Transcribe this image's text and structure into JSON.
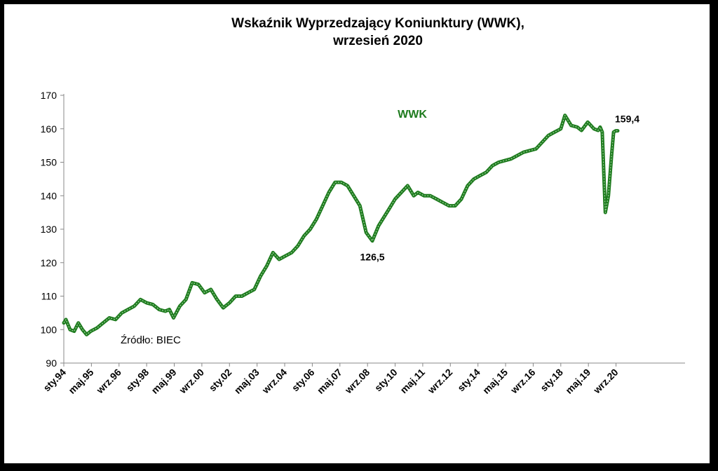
{
  "chart_data": {
    "type": "line",
    "title_lines": [
      "Wskaźnik Wyprzedzający Koniunktury (WWK),",
      "wrzesień 2020"
    ],
    "ylim": [
      90,
      170
    ],
    "yticks": [
      "90",
      "100",
      "110",
      "120",
      "130",
      "140",
      "150",
      "160",
      "170"
    ],
    "x_tick_labels": [
      "sty.94",
      "maj.95",
      "wrz.96",
      "sty.98",
      "maj.99",
      "wrz.00",
      "sty.02",
      "maj.03",
      "wrz.04",
      "sty.06",
      "maj.07",
      "wrz.08",
      "sty.10",
      "maj.11",
      "wrz.12",
      "sty.14",
      "maj.15",
      "wrz.16",
      "sty.18",
      "maj.19",
      "wrz.20"
    ],
    "x_start_label": "sty.94",
    "series": [
      {
        "name": "WWK",
        "color": "#1e7b1e",
        "x": [
          1994.0,
          1994.1,
          1994.3,
          1994.5,
          1994.7,
          1994.9,
          1995.1,
          1995.3,
          1995.6,
          1995.9,
          1996.2,
          1996.5,
          1996.8,
          1997.1,
          1997.4,
          1997.7,
          1998.0,
          1998.3,
          1998.6,
          1998.9,
          1999.1,
          1999.3,
          1999.6,
          1999.9,
          2000.2,
          2000.5,
          2000.8,
          2001.1,
          2001.4,
          2001.7,
          2002.0,
          2002.3,
          2002.6,
          2002.9,
          2003.2,
          2003.5,
          2003.8,
          2004.1,
          2004.4,
          2004.7,
          2005.0,
          2005.3,
          2005.6,
          2005.9,
          2006.2,
          2006.5,
          2006.8,
          2007.1,
          2007.4,
          2007.7,
          2008.0,
          2008.3,
          2008.6,
          2008.9,
          2009.2,
          2009.4,
          2009.7,
          2010.0,
          2010.3,
          2010.6,
          2010.9,
          2011.1,
          2011.4,
          2011.7,
          2012.0,
          2012.3,
          2012.6,
          2012.9,
          2013.2,
          2013.5,
          2013.8,
          2014.1,
          2014.4,
          2014.7,
          2015.0,
          2015.3,
          2015.6,
          2015.9,
          2016.2,
          2016.5,
          2016.8,
          2017.1,
          2017.4,
          2017.7,
          2018.0,
          2018.2,
          2018.5,
          2018.8,
          2019.0,
          2019.3,
          2019.6,
          2019.8,
          2019.9,
          2020.0,
          2020.15,
          2020.3,
          2020.45,
          2020.55,
          2020.65,
          2020.75
        ],
        "values": [
          102,
          103,
          100,
          99.5,
          102,
          100,
          98.5,
          99.5,
          100.5,
          102,
          103.5,
          103,
          105,
          106,
          107,
          109,
          108,
          107.5,
          106,
          105.5,
          106,
          103.5,
          107,
          109,
          114,
          113.5,
          111,
          112,
          109,
          106.5,
          108,
          110,
          110,
          111,
          112,
          116,
          119,
          123,
          121,
          122,
          123,
          125,
          128,
          130,
          133,
          137,
          141,
          144,
          144,
          143,
          140,
          137,
          129,
          126.5,
          131,
          133,
          136,
          139,
          141,
          143,
          140,
          141,
          140,
          140,
          139,
          138,
          137,
          137,
          139,
          143,
          145,
          146,
          147,
          149,
          150,
          150.5,
          151,
          152,
          153,
          153.5,
          154,
          156,
          158,
          159,
          160,
          164,
          161,
          160.5,
          159.5,
          162,
          160,
          159.5,
          160.5,
          159,
          135,
          140,
          152,
          159,
          159.4,
          159.4
        ]
      }
    ],
    "annotations": [
      {
        "text": "126,5",
        "x": 2008.9,
        "y": 126.5
      },
      {
        "text": "159,4",
        "x": 2020.75,
        "y": 159.4
      }
    ],
    "series_label": "WWK",
    "source_note": "Źródło: BIEC",
    "grid": false,
    "legend": "none"
  }
}
